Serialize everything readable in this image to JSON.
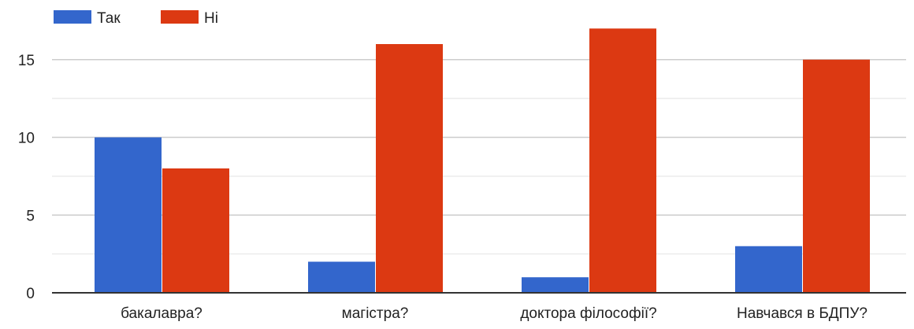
{
  "chart_data": {
    "type": "bar",
    "title": "",
    "xlabel": "",
    "ylabel": "",
    "categories": [
      "бакалавра?",
      "магістра?",
      "доктора філософії?",
      "Навчався в БДПУ?"
    ],
    "series": [
      {
        "name": "Так",
        "color": "#3366cc",
        "values": [
          10,
          2,
          1,
          3
        ]
      },
      {
        "name": "Ні",
        "color": "#dc3912",
        "values": [
          8,
          16,
          17,
          15
        ]
      }
    ],
    "ylim": [
      0,
      17
    ],
    "yticks": [
      "0",
      "5",
      "10",
      "15"
    ],
    "grid": true,
    "minor_grid": true,
    "legend_position": "top-left"
  }
}
